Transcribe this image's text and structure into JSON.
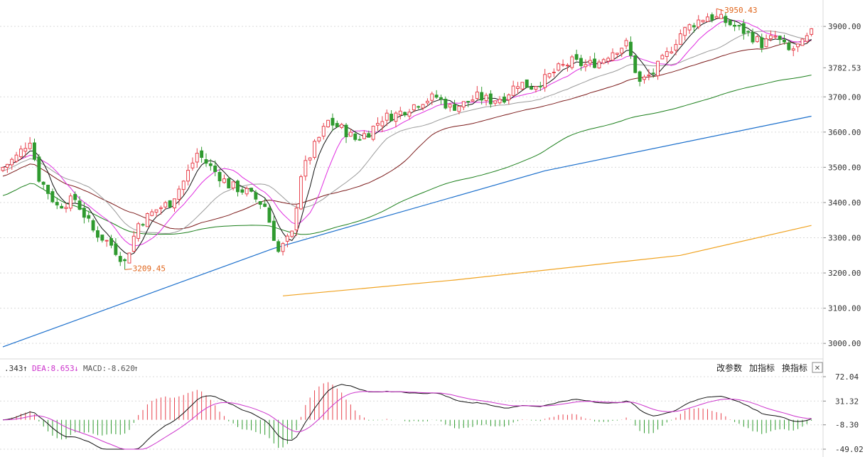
{
  "chart_data": [
    {
      "type": "candlestick",
      "panel": "price",
      "yticks": [
        3000,
        3100,
        3200,
        3300,
        3400,
        3500,
        3600,
        3700,
        3900
      ],
      "ytick_labels": [
        "3000.00",
        "3100.00",
        "3200.00",
        "3300.00",
        "3400.00",
        "3500.00",
        "3600.00",
        "3700.00",
        "3900.00"
      ],
      "ylim": [
        2960,
        3975
      ],
      "last_price": 3782.53,
      "last_price_label": "3782.53",
      "grid": true,
      "low_annotation": {
        "index": 27,
        "value": 3209.45,
        "label": "3209.45"
      },
      "high_annotation": {
        "index": 158,
        "value": 3950.43,
        "label": "3950.43"
      },
      "colors": {
        "up": "#e8424d",
        "down": "#2f9a2f",
        "ma5": "#111111",
        "ma10": "#e02ee0",
        "ma20": "#9b9b9b",
        "ma30": "#7b1a1a",
        "ma60": "#1b7f1b",
        "ma120": "#1b6fcc",
        "ma250": "#f0a21f"
      },
      "candle_count": 180,
      "close_anchors": [
        [
          0,
          3500
        ],
        [
          3,
          3530
        ],
        [
          6,
          3580
        ],
        [
          8,
          3470
        ],
        [
          12,
          3390
        ],
        [
          16,
          3410
        ],
        [
          20,
          3320
        ],
        [
          24,
          3280
        ],
        [
          27,
          3230
        ],
        [
          30,
          3340
        ],
        [
          34,
          3380
        ],
        [
          37,
          3400
        ],
        [
          40,
          3460
        ],
        [
          43,
          3540
        ],
        [
          46,
          3500
        ],
        [
          50,
          3450
        ],
        [
          54,
          3430
        ],
        [
          58,
          3390
        ],
        [
          61,
          3260
        ],
        [
          64,
          3310
        ],
        [
          66,
          3480
        ],
        [
          69,
          3560
        ],
        [
          72,
          3630
        ],
        [
          75,
          3610
        ],
        [
          78,
          3580
        ],
        [
          81,
          3600
        ],
        [
          84,
          3640
        ],
        [
          87,
          3650
        ],
        [
          90,
          3670
        ],
        [
          93,
          3690
        ],
        [
          96,
          3700
        ],
        [
          99,
          3670
        ],
        [
          102,
          3680
        ],
        [
          105,
          3700
        ],
        [
          108,
          3690
        ],
        [
          111,
          3700
        ],
        [
          114,
          3740
        ],
        [
          117,
          3730
        ],
        [
          120,
          3750
        ],
        [
          123,
          3780
        ],
        [
          126,
          3800
        ],
        [
          129,
          3790
        ],
        [
          132,
          3800
        ],
        [
          135,
          3830
        ],
        [
          138,
          3850
        ],
        [
          141,
          3740
        ],
        [
          144,
          3770
        ],
        [
          147,
          3820
        ],
        [
          150,
          3880
        ],
        [
          153,
          3910
        ],
        [
          156,
          3930
        ],
        [
          159,
          3920
        ],
        [
          162,
          3900
        ],
        [
          165,
          3880
        ],
        [
          168,
          3850
        ],
        [
          171,
          3870
        ],
        [
          174,
          3830
        ],
        [
          177,
          3850
        ],
        [
          179,
          3880
        ]
      ],
      "ma120_points": [
        [
          0,
          2990
        ],
        [
          60,
          3270
        ],
        [
          120,
          3490
        ],
        [
          179,
          3645
        ]
      ],
      "ma250_points": [
        [
          62,
          3135
        ],
        [
          100,
          3180
        ],
        [
          150,
          3250
        ],
        [
          179,
          3335
        ]
      ]
    },
    {
      "type": "macd",
      "panel": "indicator",
      "yticks": [
        72.04,
        31.32,
        -8.3,
        -49.02
      ],
      "ytick_labels": [
        "72.04",
        "31.32",
        "-8.30",
        "-49.02"
      ],
      "ylim": [
        -49.02,
        72.04
      ],
      "series_labels": {
        "dif": ".343",
        "dea": "DEA:8.653",
        "macd": "MACD:-8.620"
      },
      "colors": {
        "dif": "#111111",
        "dea": "#cc33cc",
        "hist_up": "#e8424d",
        "hist_down": "#2f9a2f"
      }
    }
  ],
  "toolbar": {
    "change_params": "改参数",
    "add_indicator": "加指标",
    "switch_indicator": "换指标",
    "close_symbol": "✕"
  },
  "icons": {
    "dif_arrow": "up-arrow-icon",
    "dea_arrow": "down-arrow-icon",
    "macd_arrow": "up-arrow-icon",
    "close": "close-icon"
  }
}
